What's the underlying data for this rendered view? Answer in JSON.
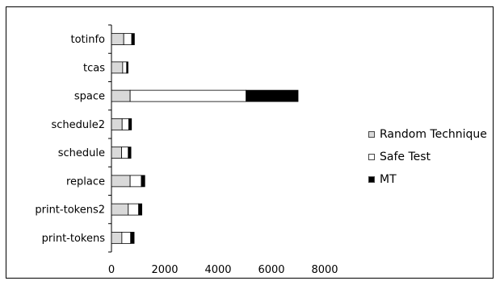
{
  "chart_data": {
    "type": "bar",
    "orientation": "horizontal",
    "stacked": true,
    "categories": [
      "totinfo",
      "tcas",
      "space",
      "schedule2",
      "schedule",
      "replace",
      "print-tokens2",
      "print-tokens"
    ],
    "series": [
      {
        "name": "Random Technique",
        "color": "#d9d9d9",
        "values": [
          460,
          420,
          700,
          400,
          380,
          700,
          630,
          390
        ]
      },
      {
        "name": "Safe Test",
        "color": "#ffffff",
        "values": [
          300,
          150,
          4350,
          250,
          250,
          420,
          390,
          330
        ]
      },
      {
        "name": "MT",
        "color": "#000000",
        "values": [
          100,
          50,
          1950,
          100,
          100,
          130,
          120,
          130
        ]
      }
    ],
    "xlim": [
      0,
      8000
    ],
    "xticks": [
      "0",
      "2000",
      "4000",
      "6000",
      "8000"
    ],
    "grid": false,
    "legend_position": "right"
  }
}
